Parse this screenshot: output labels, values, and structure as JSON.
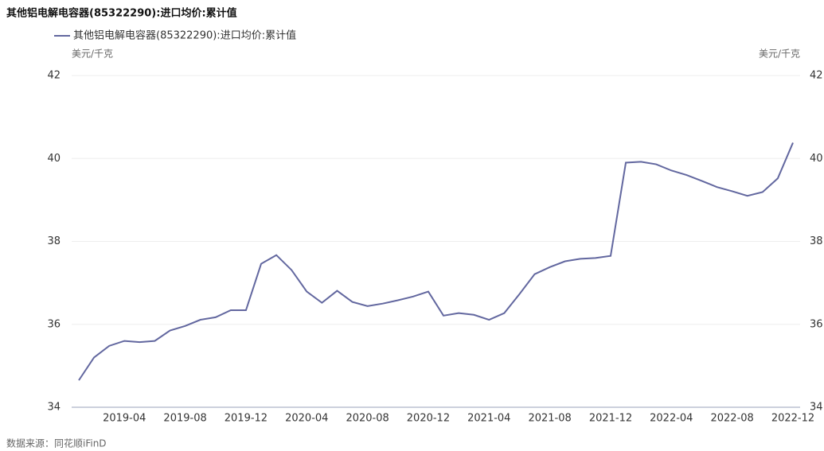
{
  "chart_data": {
    "type": "line",
    "title": "其他铝电解电容器(85322290):进口均价:累计值",
    "y_label": "美元/千克",
    "y2_label": "美元/千克",
    "source": "数据来源：同花顺iFinD",
    "categories": [
      null,
      null,
      null,
      "2019-04",
      null,
      null,
      null,
      "2019-08",
      null,
      null,
      null,
      "2019-12",
      null,
      null,
      null,
      "2020-04",
      null,
      null,
      null,
      "2020-08",
      null,
      null,
      null,
      "2020-12",
      null,
      null,
      null,
      "2021-04",
      null,
      null,
      null,
      "2021-08",
      null,
      null,
      null,
      "2021-12",
      null,
      null,
      null,
      "2022-04",
      null,
      null,
      null,
      "2022-08",
      null,
      null,
      null,
      "2022-12"
    ],
    "series": [
      {
        "name": "其他铝电解电容器(85322290):进口均价:累计值",
        "color": "#62679f",
        "values": [
          34.65,
          35.2,
          35.48,
          35.6,
          35.57,
          35.6,
          35.85,
          35.96,
          36.11,
          36.17,
          36.34,
          36.34,
          37.46,
          37.67,
          37.31,
          36.79,
          36.52,
          36.81,
          36.54,
          36.44,
          36.5,
          36.58,
          36.67,
          36.79,
          36.21,
          36.27,
          36.23,
          36.11,
          36.27,
          36.73,
          37.21,
          37.38,
          37.52,
          37.58,
          37.6,
          37.65,
          39.9,
          39.92,
          39.86,
          39.71,
          39.6,
          39.46,
          39.31,
          39.21,
          39.1,
          39.19,
          39.52,
          40.38
        ]
      }
    ],
    "ylim": [
      34,
      42
    ],
    "yticks": [
      34,
      36,
      38,
      40,
      42
    ],
    "y2lim": [
      34,
      42
    ],
    "y2ticks": [
      34,
      36,
      38,
      40,
      42
    ],
    "grid": true
  }
}
